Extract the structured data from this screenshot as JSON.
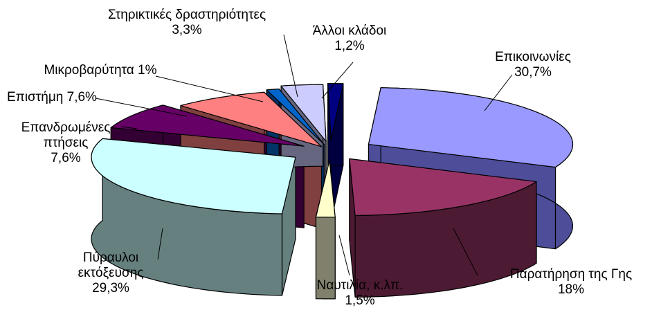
{
  "chart_data": {
    "type": "pie",
    "style": "3d-exploded",
    "title": "",
    "slices": [
      {
        "name": "Επικοινωνίες",
        "percent_label": "30,7%",
        "value": 30.7,
        "top_color": "#9999ff",
        "side_color": "#4d4d99"
      },
      {
        "name": "Παρατήρηση της Γης",
        "percent_label": "18%",
        "value": 18.0,
        "top_color": "#993366",
        "side_color": "#4d1a33"
      },
      {
        "name": "Ναυτιλία, κ.λπ.",
        "percent_label": "1,5%",
        "value": 1.5,
        "top_color": "#ffffcc",
        "side_color": "#80806d"
      },
      {
        "name": "Πύραυλοι εκτόξευσης",
        "percent_label": "29,3%",
        "value": 29.3,
        "top_color": "#ccffff",
        "side_color": "#668080"
      },
      {
        "name": "Επανδρωμένες πτήσεις",
        "percent_label": "7,6%",
        "value": 7.6,
        "top_color": "#660066",
        "side_color": "#330033"
      },
      {
        "name": "Επιστήμη",
        "percent_label": "7,6%",
        "value": 7.6,
        "top_color": "#ff8080",
        "side_color": "#804040"
      },
      {
        "name": "Μικροβαρύτητα",
        "percent_label": "1%",
        "value": 1.0,
        "top_color": "#0066cc",
        "side_color": "#003366"
      },
      {
        "name": "Στηρικτικές δραστηριότητες",
        "percent_label": "3,3%",
        "value": 3.3,
        "top_color": "#ccccff",
        "side_color": "#666680"
      },
      {
        "name": "Άλλοι κλάδοι",
        "percent_label": "1,2%",
        "value": 1.2,
        "top_color": "#000080",
        "side_color": "#000040"
      }
    ],
    "labels": [
      {
        "lines": [
          "Επικοινωνίες",
          "30,7%"
        ]
      },
      {
        "lines": [
          "Παρατήρηση της Γης",
          "18%"
        ]
      },
      {
        "lines": [
          "Ναυτιλία, κ.λπ.",
          "1,5%"
        ]
      },
      {
        "lines": [
          "Πύραυλοι",
          "εκτόξευσης",
          "29,3%"
        ]
      },
      {
        "lines": [
          "Επανδρωμένες",
          "πτήσεις",
          "7,6%"
        ]
      },
      {
        "lines": [
          "Επιστήμη 7,6%"
        ]
      },
      {
        "lines": [
          "Μικροβαρύτητα 1%"
        ]
      },
      {
        "lines": [
          "Στηρικτικές δραστηριότητες",
          "3,3%"
        ]
      },
      {
        "lines": [
          "Άλλοι κλάδοι",
          "1,2%"
        ]
      }
    ],
    "legend": "none"
  }
}
